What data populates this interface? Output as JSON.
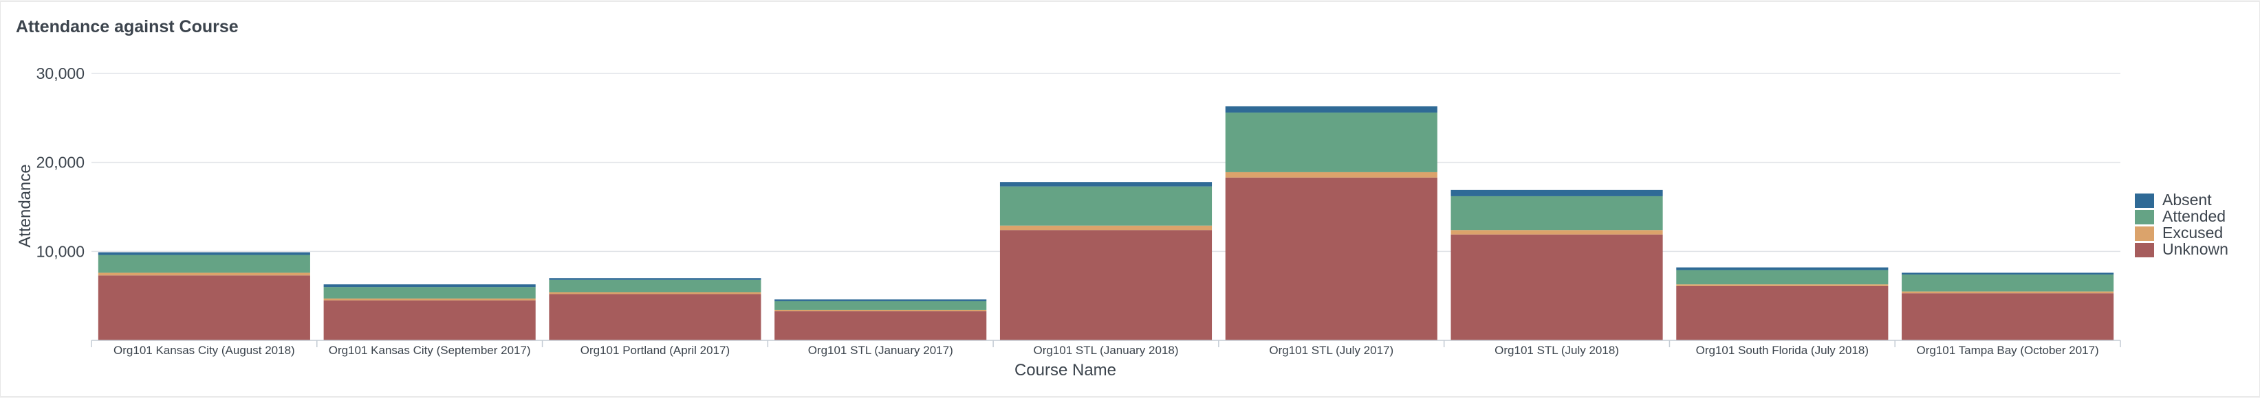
{
  "panel": {
    "title": "Attendance against Course"
  },
  "chart_data": {
    "type": "bar",
    "stacked": true,
    "title": "Attendance against Course",
    "xlabel": "Course Name",
    "ylabel": "Attendance",
    "ylim": [
      0,
      30000
    ],
    "yticks": [
      10000,
      20000,
      30000
    ],
    "ytick_labels": [
      "10,000",
      "20,000",
      "30,000"
    ],
    "grid": true,
    "legend_position": "right",
    "categories": [
      "Org101 Kansas City (August 2018)",
      "Org101 Kansas City (September 2017)",
      "Org101 Portland (April 2017)",
      "Org101 STL (January 2017)",
      "Org101 STL (January 2018)",
      "Org101 STL (July 2017)",
      "Org101 STL (July 2018)",
      "Org101 South Florida (July 2018)",
      "Org101 Tampa Bay (October 2017)"
    ],
    "series": [
      {
        "name": "Unknown",
        "color": "#a65c5c",
        "values": [
          7300,
          4500,
          5200,
          3300,
          12400,
          18300,
          11900,
          6100,
          5300
        ]
      },
      {
        "name": "Excused",
        "color": "#dba36b",
        "values": [
          300,
          200,
          200,
          100,
          500,
          600,
          500,
          200,
          200
        ]
      },
      {
        "name": "Attended",
        "color": "#65a385",
        "values": [
          2000,
          1300,
          1400,
          1000,
          4400,
          6700,
          3800,
          1600,
          1900
        ]
      },
      {
        "name": "Absent",
        "color": "#2f6a96",
        "values": [
          300,
          300,
          200,
          200,
          500,
          700,
          700,
          300,
          200
        ]
      }
    ],
    "legend_order": [
      "Absent",
      "Attended",
      "Excused",
      "Unknown"
    ]
  }
}
